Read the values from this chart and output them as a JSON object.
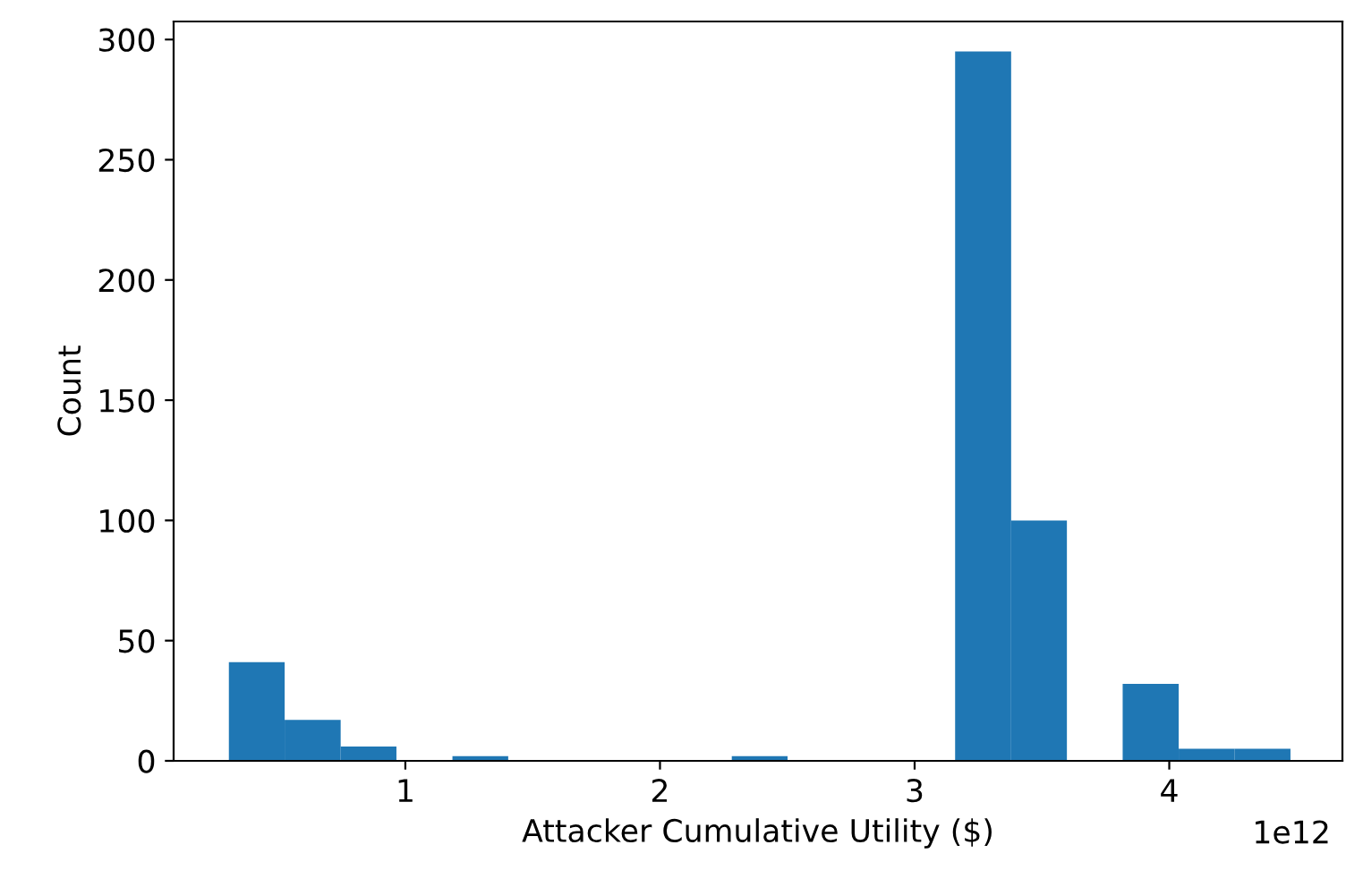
{
  "chart_data": {
    "type": "histogram",
    "xlabel": "Attacker Cumulative Utility ($)",
    "ylabel": "Count",
    "bins": [
      0.307,
      0.526,
      0.746,
      0.965,
      1.185,
      1.404,
      1.623,
      1.843,
      2.062,
      2.282,
      2.501,
      2.72,
      2.94,
      3.159,
      3.379,
      3.598,
      3.817,
      4.037,
      4.256,
      4.476
    ],
    "values": [
      41,
      17,
      6,
      0,
      2,
      0,
      0,
      0,
      0,
      2,
      0,
      0,
      0,
      295,
      100,
      0,
      32,
      5,
      5
    ],
    "color": "#1f77b4",
    "xlim": [
      0.09,
      4.68
    ],
    "ylim": [
      0,
      307.5
    ],
    "xticks": [
      1,
      2,
      3,
      4
    ],
    "yticks": [
      0,
      50,
      100,
      150,
      200,
      250,
      300
    ],
    "grid": false,
    "annotations": [
      "1e12"
    ]
  }
}
